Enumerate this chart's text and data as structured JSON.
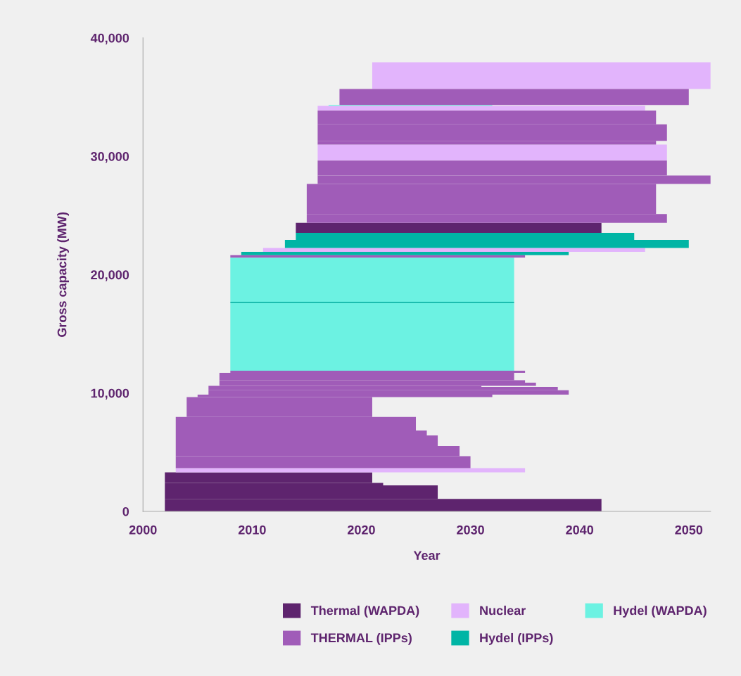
{
  "chart_data": {
    "type": "bar",
    "orientation": "horizontal",
    "xlabel": "Year",
    "ylabel": "Gross capacity (MW)",
    "xlim": [
      2000,
      2052
    ],
    "xticks": [
      2000,
      2010,
      2020,
      2030,
      2040,
      2050
    ],
    "ylim": [
      0,
      40000
    ],
    "yticks": [
      0,
      {
        "value": 10000,
        "label": "10,000"
      },
      {
        "value": 20000,
        "label": "20,000"
      },
      {
        "value": 30000,
        "label": "30,000"
      },
      {
        "value": 40000,
        "label": "40,000"
      }
    ],
    "grid": false,
    "legend": "bottom",
    "series": [
      {
        "name": "Thermal (WAPDA)",
        "color": "#5e246e",
        "x": [
          525,
          1625,
          2300,
          2850,
          23950
        ],
        "base": [
          2002,
          2002,
          2002,
          2002,
          2014
        ],
        "values": [
          40,
          25,
          20,
          19,
          28
        ]
      },
      {
        "name": "Nuclear",
        "color": "#e2b4fc",
        "x": [
          3475,
          22090,
          30305,
          34055,
          36810
        ],
        "base": [
          2003,
          2011,
          2016,
          2016,
          2021
        ],
        "values": [
          32,
          35,
          32,
          30,
          31
        ]
      },
      {
        "name": "Hydel (WAPDA)",
        "color": "#6cf2e2",
        "x": [
          14750,
          19575,
          34295
        ],
        "base": [
          2008,
          2008,
          2017
        ],
        "values": [
          26,
          26,
          15
        ]
      },
      {
        "name": "THERMAL (IPPs)",
        "color": "#a05cb8",
        "x": [
          4160,
          5100,
          5975,
          6630,
          7405,
          8810,
          9760,
          10055,
          10375,
          10560,
          10745,
          10980,
          11395,
          11800,
          21540,
          24745,
          26390,
          28015,
          29000,
          31140,
          31995,
          33270,
          35005
        ],
        "base": [
          2003,
          2003,
          2003,
          2003,
          2003,
          2004,
          2005,
          2006,
          2006,
          2006,
          2007,
          2007,
          2007,
          2008,
          2008,
          2015,
          2015,
          2016,
          2016,
          2016,
          2016,
          2016,
          2018
        ],
        "values": [
          27,
          26,
          24,
          23,
          22,
          17,
          27,
          33,
          32,
          25,
          29,
          28,
          27,
          27,
          27,
          33,
          32,
          36,
          32,
          31,
          32,
          31,
          32
        ]
      },
      {
        "name": "Hydel (IPPs)",
        "color": "#00b5a5",
        "x": [
          17660,
          21785,
          22595,
          23235
        ],
        "base": [
          2008,
          2009,
          2013,
          2014
        ],
        "values": [
          26,
          30,
          37,
          31
        ]
      }
    ]
  }
}
